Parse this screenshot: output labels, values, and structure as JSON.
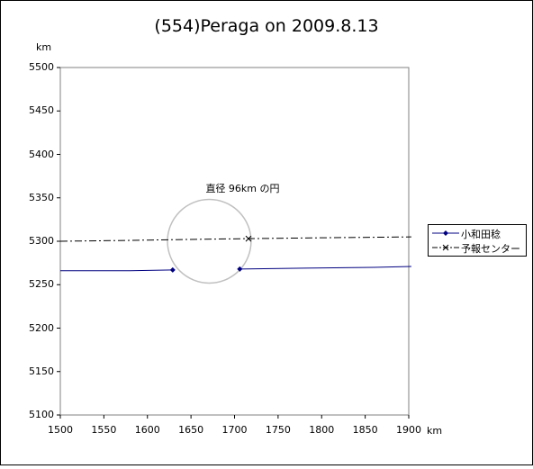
{
  "chart_data": {
    "type": "line",
    "title": "(554)Peraga on 2009.8.13",
    "xunit": "km",
    "yunit": "km",
    "xlim": [
      1500,
      1900
    ],
    "ylim": [
      5100,
      5500
    ],
    "xticks": [
      1500,
      1550,
      1600,
      1650,
      1700,
      1750,
      1800,
      1850,
      1900
    ],
    "yticks": [
      5100,
      5150,
      5200,
      5250,
      5300,
      5350,
      5400,
      5450,
      5500
    ],
    "grid": false,
    "legend_position": "right",
    "series": [
      {
        "name": "小和田稔",
        "color": "#000080",
        "style": "solid",
        "marker": "diamond",
        "segments": [
          [
            [
              1500,
              5266
            ],
            [
              1580,
              5266
            ],
            [
              1629,
              5267
            ]
          ],
          [
            [
              1706,
              5268
            ],
            [
              1780,
              5269
            ],
            [
              1860,
              5270
            ],
            [
              1903,
              5271
            ]
          ]
        ],
        "marked_points": [
          [
            1629,
            5267
          ],
          [
            1706,
            5268
          ]
        ]
      },
      {
        "name": "予報センター",
        "color": "#000000",
        "style": "dashdot",
        "marker": "x",
        "segments": [
          [
            [
              1500,
              5300
            ],
            [
              1580,
              5301
            ],
            [
              1640,
              5302
            ],
            [
              1716,
              5303
            ],
            [
              1800,
              5304
            ],
            [
              1903,
              5305
            ]
          ]
        ],
        "marked_points": [
          [
            1716,
            5303
          ]
        ]
      }
    ],
    "circle": {
      "center": [
        1671,
        5300
      ],
      "radius": 48,
      "color": "#c0c0c0"
    },
    "annotation": {
      "text": "直径 96km の円",
      "x": 1671,
      "y": 5357
    }
  }
}
